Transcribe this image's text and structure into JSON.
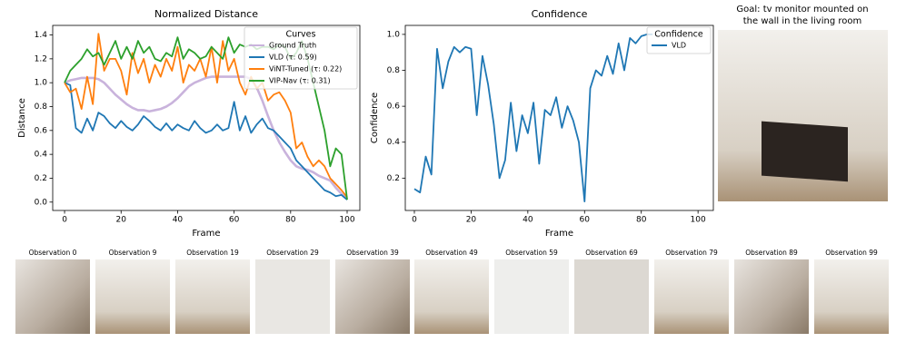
{
  "chart_data": [
    {
      "type": "line",
      "title": "Normalized Distance",
      "xlabel": "Frame",
      "ylabel": "Distance",
      "legend_title": "Curves",
      "legend": "upper right",
      "x": [
        0,
        2,
        4,
        6,
        8,
        10,
        12,
        14,
        16,
        18,
        20,
        22,
        24,
        26,
        28,
        30,
        32,
        34,
        36,
        38,
        40,
        42,
        44,
        46,
        48,
        50,
        52,
        54,
        56,
        58,
        60,
        62,
        64,
        66,
        68,
        70,
        72,
        74,
        76,
        78,
        80,
        82,
        84,
        86,
        88,
        90,
        92,
        94,
        96,
        98,
        100
      ],
      "series": [
        {
          "name": "Ground Truth",
          "color": "#c9b3dc",
          "values": [
            1.0,
            1.02,
            1.03,
            1.04,
            1.04,
            1.04,
            1.03,
            1.0,
            0.95,
            0.9,
            0.86,
            0.82,
            0.79,
            0.77,
            0.77,
            0.76,
            0.77,
            0.78,
            0.8,
            0.83,
            0.87,
            0.92,
            0.97,
            1.0,
            1.02,
            1.04,
            1.05,
            1.05,
            1.05,
            1.05,
            1.05,
            1.05,
            1.05,
            1.03,
            0.96,
            0.85,
            0.72,
            0.6,
            0.5,
            0.42,
            0.35,
            0.3,
            0.28,
            0.27,
            0.25,
            0.22,
            0.2,
            0.18,
            0.12,
            0.07,
            0.03
          ]
        },
        {
          "name": "VLD (τ: 0.59)",
          "color": "#1f77b4",
          "values": [
            1.0,
            0.98,
            0.62,
            0.58,
            0.7,
            0.6,
            0.75,
            0.72,
            0.66,
            0.62,
            0.68,
            0.63,
            0.6,
            0.65,
            0.72,
            0.68,
            0.63,
            0.6,
            0.66,
            0.6,
            0.65,
            0.62,
            0.6,
            0.68,
            0.62,
            0.58,
            0.6,
            0.65,
            0.6,
            0.62,
            0.84,
            0.6,
            0.72,
            0.58,
            0.65,
            0.7,
            0.62,
            0.6,
            0.55,
            0.5,
            0.45,
            0.35,
            0.3,
            0.25,
            0.2,
            0.15,
            0.1,
            0.08,
            0.05,
            0.06,
            0.02
          ]
        },
        {
          "name": "ViNT-Tuned (τ: 0.22)",
          "color": "#ff7f0e",
          "values": [
            1.0,
            0.92,
            0.95,
            0.78,
            1.05,
            0.82,
            1.41,
            1.1,
            1.2,
            1.2,
            1.1,
            0.9,
            1.25,
            1.08,
            1.2,
            1.0,
            1.15,
            1.05,
            1.2,
            1.1,
            1.3,
            1.0,
            1.15,
            1.1,
            1.2,
            1.05,
            1.3,
            1.0,
            1.35,
            1.1,
            1.2,
            1.0,
            0.9,
            1.05,
            0.95,
            1.0,
            0.85,
            0.9,
            0.92,
            0.85,
            0.75,
            0.45,
            0.5,
            0.38,
            0.3,
            0.35,
            0.3,
            0.2,
            0.15,
            0.1,
            0.04
          ]
        },
        {
          "name": "VIP-Nav (τ: 0.31)",
          "color": "#2ca02c",
          "values": [
            1.0,
            1.1,
            1.15,
            1.2,
            1.28,
            1.22,
            1.25,
            1.15,
            1.25,
            1.35,
            1.2,
            1.3,
            1.2,
            1.35,
            1.25,
            1.3,
            1.2,
            1.18,
            1.25,
            1.22,
            1.38,
            1.2,
            1.28,
            1.25,
            1.2,
            1.22,
            1.3,
            1.25,
            1.2,
            1.38,
            1.25,
            1.32,
            1.3,
            1.32,
            1.28,
            1.3,
            1.3,
            1.28,
            1.32,
            1.3,
            1.2,
            1.25,
            1.35,
            1.2,
            1.0,
            0.8,
            0.6,
            0.3,
            0.45,
            0.4,
            0.02
          ]
        }
      ],
      "xlim": [
        -4.2,
        104.5
      ],
      "xticks": [
        0,
        20,
        40,
        60,
        80,
        100
      ],
      "ylim": [
        -0.07,
        1.48
      ],
      "yticks": [
        {
          "value": 0,
          "label": "0.0"
        },
        0.2,
        0.4,
        0.6,
        0.8,
        {
          "value": 1,
          "label": "1.0"
        },
        1.2,
        1.4
      ]
    },
    {
      "type": "line",
      "title": "Confidence",
      "xlabel": "Frame",
      "ylabel": "Confidence",
      "legend_title": "Confidence",
      "legend": "upper right",
      "x": [
        0,
        2,
        4,
        6,
        8,
        10,
        12,
        14,
        16,
        18,
        20,
        22,
        24,
        26,
        28,
        30,
        32,
        34,
        36,
        38,
        40,
        42,
        44,
        46,
        48,
        50,
        52,
        54,
        56,
        58,
        60,
        62,
        64,
        66,
        68,
        70,
        72,
        74,
        76,
        78,
        80,
        82,
        84
      ],
      "series": [
        {
          "name": "VLD",
          "color": "#1f77b4",
          "values": [
            0.14,
            0.12,
            0.32,
            0.22,
            0.92,
            0.7,
            0.85,
            0.93,
            0.9,
            0.93,
            0.92,
            0.55,
            0.88,
            0.72,
            0.5,
            0.2,
            0.3,
            0.62,
            0.35,
            0.55,
            0.45,
            0.62,
            0.28,
            0.58,
            0.55,
            0.65,
            0.48,
            0.6,
            0.52,
            0.4,
            0.07,
            0.7,
            0.8,
            0.77,
            0.88,
            0.78,
            0.95,
            0.8,
            0.98,
            0.95,
            0.99,
            1.0,
            1.0
          ]
        }
      ],
      "xlim": [
        -3.2,
        105.4
      ],
      "xticks": [
        0,
        20,
        40,
        60,
        80,
        100
      ],
      "ylim": [
        0.02,
        1.05
      ],
      "yticks": [
        0.2,
        0.4,
        0.6,
        0.8,
        {
          "value": 1,
          "label": "1.0"
        }
      ]
    }
  ],
  "goal_title": [
    "Goal: tv monitor mounted on",
    "the wall in the living room"
  ],
  "observations": [
    "Observation 0",
    "Observation 9",
    "Observation 19",
    "Observation 29",
    "Observation 39",
    "Observation 49",
    "Observation 59",
    "Observation 69",
    "Observation 79",
    "Observation 89",
    "Observation 99"
  ]
}
